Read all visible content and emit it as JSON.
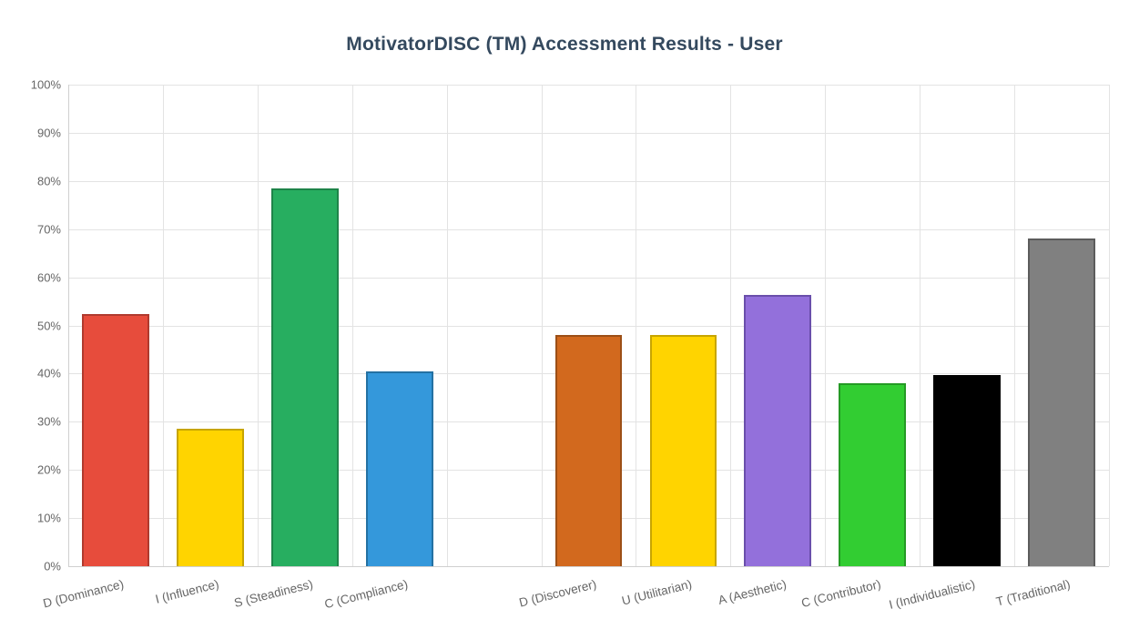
{
  "chart_data": {
    "type": "bar",
    "title": "MotivatorDISC (TM) Accessment Results - User",
    "xlabel": "",
    "ylabel": "",
    "ylim": [
      0,
      100
    ],
    "ytick_step": 10,
    "ytick_suffix": "%",
    "grid": true,
    "legend": "none",
    "total_slots": 11,
    "bars": [
      {
        "label": "D (Dominance)",
        "value": 52.3,
        "slot": 0,
        "color": "#e74c3c",
        "border": "#b03a2e"
      },
      {
        "label": "I (Influence)",
        "value": 28.5,
        "slot": 1,
        "color": "#ffd400",
        "border": "#c7a500"
      },
      {
        "label": "S (Steadiness)",
        "value": 78.4,
        "slot": 2,
        "color": "#27ae60",
        "border": "#1e8449"
      },
      {
        "label": "C (Compliance)",
        "value": 40.4,
        "slot": 3,
        "color": "#3498db",
        "border": "#2471a3"
      },
      {
        "label": "D (Discoverer)",
        "value": 48.1,
        "slot": 5,
        "color": "#d2691e",
        "border": "#9c4f16"
      },
      {
        "label": "U (Utilitarian)",
        "value": 48.1,
        "slot": 6,
        "color": "#ffd400",
        "border": "#c7a500"
      },
      {
        "label": "A (Aesthetic)",
        "value": 56.4,
        "slot": 7,
        "color": "#9370db",
        "border": "#6a4fab"
      },
      {
        "label": "C (Contributor)",
        "value": 38.0,
        "slot": 8,
        "color": "#32cd32",
        "border": "#249a24"
      },
      {
        "label": "I (Individualistic)",
        "value": 39.7,
        "slot": 9,
        "color": "#000000",
        "border": "#000000"
      },
      {
        "label": "T (Traditional)",
        "value": 68.1,
        "slot": 10,
        "color": "#808080",
        "border": "#5c5c5c"
      }
    ]
  },
  "colors": {
    "title": "#34495e",
    "axis_text": "#666666",
    "gridline": "#e3e3e3",
    "axis_line": "#cfcfcf",
    "background": "#ffffff"
  }
}
